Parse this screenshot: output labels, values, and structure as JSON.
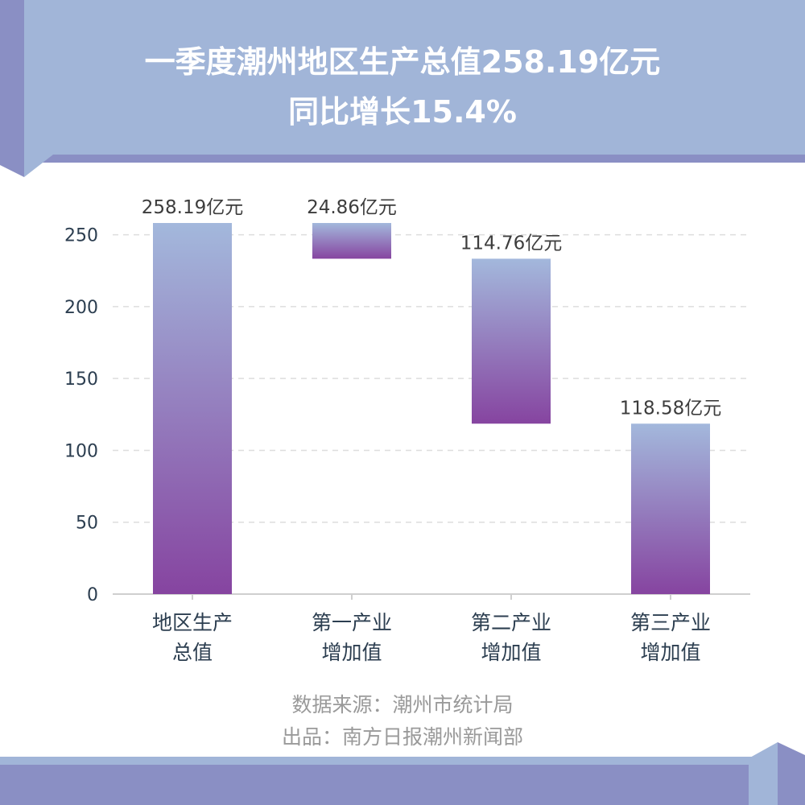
{
  "title": {
    "line1": "一季度潮州地区生产总值258.19亿元",
    "line2": "同比增长15.4%"
  },
  "colors": {
    "banner": "#a1b5d8",
    "accent": "#8a8fc4",
    "bar_top": "#a3b8dc",
    "bar_bottom": "#8644a0"
  },
  "chart_data": {
    "type": "bar",
    "subtype": "waterfall",
    "categories": [
      [
        "地区生产",
        "总值"
      ],
      [
        "第一产业",
        "增加值"
      ],
      [
        "第二产业",
        "增加值"
      ],
      [
        "第三产业",
        "增加值"
      ]
    ],
    "values": [
      258.19,
      24.86,
      114.76,
      118.58
    ],
    "data_labels": [
      "258.19亿元",
      "24.86亿元",
      "114.76亿元",
      "118.58亿元"
    ],
    "ylim": [
      0,
      260
    ],
    "yticks": [
      0,
      50,
      100,
      150,
      200,
      250
    ],
    "grid": true,
    "legend": false
  },
  "source": {
    "data": "数据来源：潮州市统计局",
    "publisher": "出品：南方日报潮州新闻部"
  }
}
